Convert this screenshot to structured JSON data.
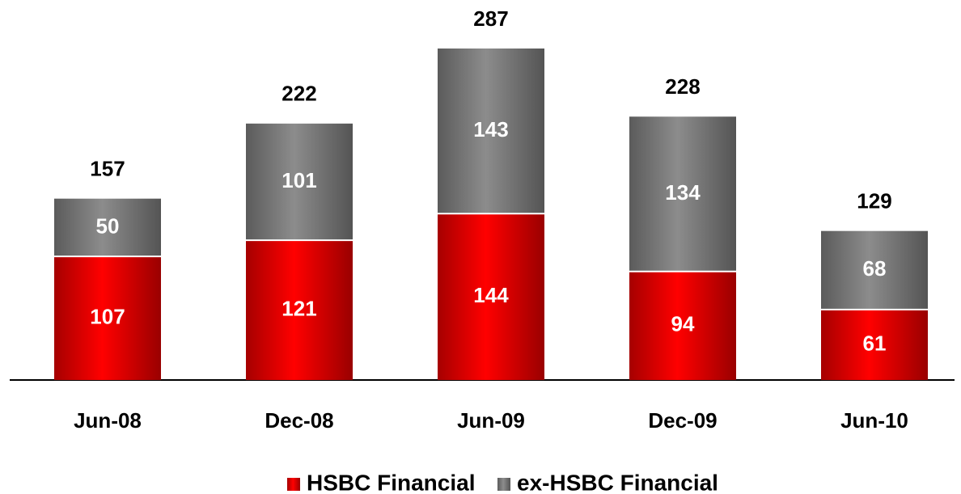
{
  "chart_data": {
    "type": "stacked_bar",
    "categories": [
      "Jun-08",
      "Dec-08",
      "Jun-09",
      "Dec-09",
      "Jun-10"
    ],
    "series": [
      {
        "name": "HSBC Financial",
        "color": "#ff0000",
        "values": [
          107,
          121,
          144,
          94,
          61
        ]
      },
      {
        "name": "ex-HSBC Financial",
        "color": "#8c8c8c",
        "values": [
          50,
          101,
          143,
          134,
          68
        ]
      }
    ],
    "totals": [
      157,
      222,
      287,
      228,
      129
    ]
  }
}
